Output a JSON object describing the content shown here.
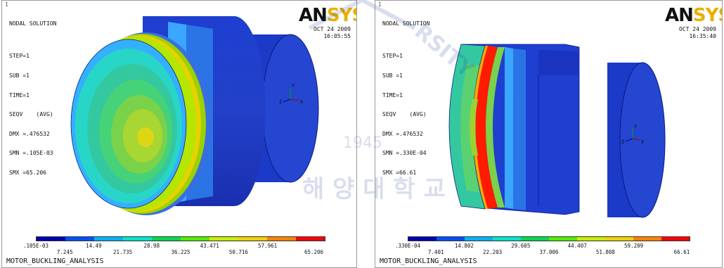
{
  "panels": [
    {
      "index_marker": "1",
      "header": [
        "NODAL SOLUTION",
        "",
        "STEP=1",
        "SUB =1",
        "TIME=1",
        "SEQV    (AVG)",
        "DMX =.476532",
        "SMN =.105E-03",
        "SMX =65.206"
      ],
      "logo": {
        "an": "AN",
        "sys": "SYS"
      },
      "date": [
        "OCT 24 2009",
        "16:05:55"
      ],
      "legend_top": [
        ".105E-03",
        "14.49",
        "28.98",
        "43.471",
        "57.961"
      ],
      "legend_bottom": [
        "7.245",
        "21.735",
        "36.225",
        "50.716",
        "65.206"
      ],
      "triad": {
        "y": "Y",
        "z": "Z",
        "x": "X"
      },
      "footer": "MOTOR_BUCKLING_ANALYSIS"
    },
    {
      "index_marker": "1",
      "header": [
        "NODAL SOLUTION",
        "",
        "STEP=1",
        "SUB =1",
        "TIME=1",
        "SEQV    (AVG)",
        "DMX =.476532",
        "SMN =.330E-04",
        "SMX =66.61"
      ],
      "logo": {
        "an": "AN",
        "sys": "SYS"
      },
      "date": [
        "OCT 24 2009",
        "16:35:40"
      ],
      "legend_top": [
        ".330E-04",
        "14.802",
        "29.605",
        "44.407",
        "59.209"
      ],
      "legend_bottom": [
        "7.401",
        "22.203",
        "37.006",
        "51.808",
        "66.61"
      ],
      "triad": {
        "y": "Y",
        "z": "Z",
        "x": "X"
      },
      "footer": "MOTOR_BUCKLING_ANALYSIS"
    }
  ],
  "watermark": {
    "year": "1945",
    "korean": "해 양 대 학 교",
    "arc": "RSITY"
  },
  "colors": {
    "legend": [
      "#0000b4",
      "#0050ff",
      "#00b4ff",
      "#00e6c8",
      "#00dc50",
      "#50f000",
      "#c8f000",
      "#f0d200",
      "#ff8200",
      "#ff0000"
    ],
    "background": "#ffffff"
  }
}
